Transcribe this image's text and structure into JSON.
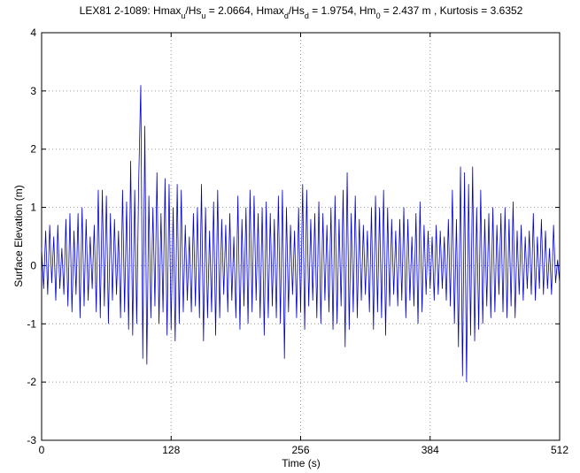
{
  "chart_data": {
    "type": "line",
    "title_parts": [
      "LEX81 2-1089: Hmax",
      "u",
      "/Hs",
      "u",
      " = 2.0664, Hmax",
      "d",
      "/Hs",
      "d",
      " = 1.9754, Hm",
      "0",
      " = 2.437 m ,  Kurtosis = 3.6352"
    ],
    "xlabel": "Time   (s)",
    "ylabel": "Surface Elevation   (m)",
    "xlim": [
      0,
      512
    ],
    "xticks": [
      0,
      128,
      256,
      384,
      512
    ],
    "ylim": [
      -3,
      4
    ],
    "yticks": [
      -3,
      -2,
      -1,
      0,
      1,
      2,
      3,
      4
    ],
    "grid": true,
    "x": [
      0,
      2,
      4,
      6,
      8,
      10,
      12,
      14,
      16,
      18,
      20,
      22,
      24,
      26,
      28,
      30,
      32,
      34,
      36,
      38,
      40,
      42,
      44,
      46,
      48,
      50,
      52,
      54,
      56,
      58,
      60,
      62,
      64,
      66,
      68,
      70,
      72,
      74,
      76,
      78,
      80,
      82,
      84,
      86,
      88,
      90,
      92,
      94,
      96,
      98,
      100,
      102,
      104,
      106,
      108,
      110,
      112,
      114,
      116,
      118,
      120,
      122,
      124,
      126,
      128,
      130,
      132,
      134,
      136,
      138,
      140,
      142,
      144,
      146,
      148,
      150,
      152,
      154,
      156,
      158,
      160,
      162,
      164,
      166,
      168,
      170,
      172,
      174,
      176,
      178,
      180,
      182,
      184,
      186,
      188,
      190,
      192,
      194,
      196,
      198,
      200,
      202,
      204,
      206,
      208,
      210,
      212,
      214,
      216,
      218,
      220,
      222,
      224,
      226,
      228,
      230,
      232,
      234,
      236,
      238,
      240,
      242,
      244,
      246,
      248,
      250,
      252,
      254,
      256,
      258,
      260,
      262,
      264,
      266,
      268,
      270,
      272,
      274,
      276,
      278,
      280,
      282,
      284,
      286,
      288,
      290,
      292,
      294,
      296,
      298,
      300,
      302,
      304,
      306,
      308,
      310,
      312,
      314,
      316,
      318,
      320,
      322,
      324,
      326,
      328,
      330,
      332,
      334,
      336,
      338,
      340,
      342,
      344,
      346,
      348,
      350,
      352,
      354,
      356,
      358,
      360,
      362,
      364,
      366,
      368,
      370,
      372,
      374,
      376,
      378,
      380,
      382,
      384,
      386,
      388,
      390,
      392,
      394,
      396,
      398,
      400,
      402,
      404,
      406,
      408,
      410,
      412,
      414,
      416,
      418,
      420,
      422,
      424,
      426,
      428,
      430,
      432,
      434,
      436,
      438,
      440,
      442,
      444,
      446,
      448,
      450,
      452,
      454,
      456,
      458,
      460,
      462,
      464,
      466,
      468,
      470,
      472,
      474,
      476,
      478,
      480,
      482,
      484,
      486,
      488,
      490,
      492,
      494,
      496,
      498,
      500,
      502,
      504,
      506,
      508,
      510,
      512
    ],
    "series": [
      {
        "name": "elevation",
        "color": "#0000cc",
        "values": [
          0.3,
          -0.4,
          0.6,
          -0.5,
          0.7,
          -0.3,
          0.5,
          -0.6,
          0.7,
          -0.4,
          0.3,
          -0.5,
          0.8,
          -0.7,
          0.9,
          -0.8,
          0.6,
          -0.5,
          0.9,
          -0.9,
          1.0,
          -0.7,
          0.8,
          -0.6,
          0.5,
          -0.4,
          0.7,
          -0.8,
          1.3,
          -0.9,
          1.3,
          -0.7,
          1.2,
          -1.0,
          0.9,
          -0.6,
          0.8,
          -0.5,
          0.6,
          -0.9,
          1.3,
          -0.8,
          1.1,
          -1.1,
          1.8,
          -1.2,
          1.3,
          -1.0,
          1.5,
          3.1,
          -1.6,
          2.4,
          -1.7,
          1.2,
          -0.9,
          1.0,
          -0.7,
          1.6,
          -1.0,
          0.9,
          -0.8,
          1.5,
          -1.2,
          1.4,
          -1.1,
          1.0,
          -1.3,
          1.4,
          -1.0,
          1.3,
          -0.8,
          0.7,
          -0.6,
          0.5,
          -0.8,
          0.9,
          -0.7,
          1.0,
          -0.9,
          1.4,
          -1.3,
          1.0,
          -0.9,
          0.6,
          -0.8,
          1.1,
          -1.2,
          1.3,
          -0.9,
          0.8,
          -0.5,
          0.7,
          -0.8,
          0.9,
          -0.6,
          0.5,
          -0.9,
          1.2,
          -1.1,
          0.8,
          -0.7,
          1.0,
          -1.0,
          1.3,
          -0.8,
          1.2,
          -0.6,
          0.9,
          -0.9,
          1.0,
          -1.2,
          1.1,
          -0.9,
          0.9,
          -0.7,
          0.8,
          -0.9,
          1.2,
          -1.0,
          1.3,
          -1.6,
          1.0,
          -0.8,
          0.7,
          -0.5,
          0.6,
          -0.9,
          1.0,
          -0.8,
          1.4,
          -1.1,
          1.3,
          -0.7,
          0.8,
          -0.6,
          0.9,
          -0.9,
          1.1,
          -1.0,
          0.9,
          -0.6,
          0.7,
          -0.8,
          1.0,
          -1.1,
          1.2,
          -1.0,
          0.8,
          -0.7,
          1.3,
          -1.4,
          1.6,
          -1.1,
          0.9,
          -0.8,
          1.2,
          -0.9,
          0.8,
          -0.6,
          0.7,
          -0.5,
          0.6,
          -0.8,
          1.0,
          -1.1,
          1.2,
          -0.8,
          1.0,
          -0.9,
          1.3,
          -1.2,
          1.0,
          -0.7,
          0.8,
          -0.5,
          0.6,
          -0.7,
          0.8,
          -0.6,
          1.0,
          -0.9,
          0.8,
          -0.6,
          0.5,
          -0.7,
          0.9,
          -1.0,
          1.1,
          -0.8,
          0.7,
          -0.5,
          0.6,
          -0.4,
          0.5,
          -0.6,
          0.7,
          -0.5,
          0.6,
          -0.4,
          0.5,
          -0.6,
          0.8,
          -0.7,
          1.3,
          -1.0,
          0.8,
          -1.4,
          1.7,
          -1.9,
          1.6,
          -2.0,
          1.4,
          -1.2,
          1.7,
          -1.3,
          1.0,
          -1.1,
          1.3,
          -1.0,
          0.8,
          -0.7,
          0.9,
          -0.9,
          1.0,
          -0.8,
          0.7,
          -0.5,
          0.9,
          -0.8,
          1.0,
          -0.9,
          0.8,
          -0.7,
          1.1,
          -0.9,
          0.6,
          -0.5,
          0.7,
          -0.6,
          0.5,
          -0.4,
          0.6,
          -0.5,
          0.9,
          -0.6,
          0.5,
          -0.4,
          0.8,
          -0.5,
          0.6,
          -0.4,
          0.3,
          -0.5,
          0.7,
          -0.3,
          0.1,
          -0.3
        ]
      }
    ]
  }
}
